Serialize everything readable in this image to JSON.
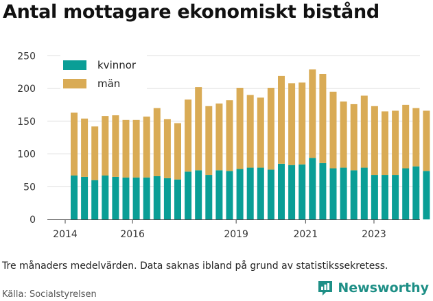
{
  "title": "Antal mottagare ekonomiskt bistånd",
  "note": "Tre månaders medelvärden. Data saknas ibland på grund av statistikssekretess.",
  "source": "Källa: Socialstyrelsen",
  "brand": {
    "name": "Newsworthy",
    "icon": "newsworthy-logo-icon"
  },
  "colors": {
    "kvinnor": "#0a9e96",
    "man": "#d9ab55",
    "grid": "#dddddd",
    "axis": "#444444"
  },
  "chart_data": {
    "type": "bar",
    "stacked": true,
    "x_ticks": [
      "2014",
      "2016",
      "2019",
      "2021",
      "2023"
    ],
    "x_tick_positions": [
      0,
      6.5,
      16.5,
      23.2,
      29.8
    ],
    "y_ticks": [
      0,
      50,
      100,
      150,
      200,
      250
    ],
    "ylim": [
      0,
      260
    ],
    "grid": true,
    "legend_position": "top-left",
    "categories": [
      "2014 Q1",
      "2014 Q2",
      "2014 Q3",
      "2014 Q4",
      "2015 Q1",
      "2015 Q2",
      "2015 Q3",
      "2015 Q4",
      "2016 Q1",
      "2016 Q2",
      "2016 Q3",
      "2016 Q4",
      "2017 Q1",
      "2017 Q2",
      "2017 Q3",
      "2017 Q4",
      "2018 Q1",
      "2018 Q2",
      "2018 Q3",
      "2018 Q4",
      "2019 Q1",
      "2019 Q2",
      "2019 Q3",
      "2019 Q4",
      "2020 Q1",
      "2020 Q2",
      "2020 Q3",
      "2020 Q4",
      "2021 Q1",
      "2021 Q2",
      "2021 Q3",
      "2021 Q4",
      "2022 Q1",
      "2022 Q2",
      "2022 Q3",
      "2022 Q4"
    ],
    "series": [
      {
        "name": "kvinnor",
        "values": [
          67,
          65,
          60,
          67,
          65,
          64,
          64,
          64,
          66,
          63,
          61,
          73,
          75,
          68,
          75,
          74,
          77,
          79,
          79,
          76,
          85,
          83,
          84,
          94,
          86,
          78,
          79,
          75,
          79,
          68,
          68,
          68,
          78,
          81,
          74,
          77
        ]
      },
      {
        "name": "män",
        "values": [
          96,
          89,
          82,
          91,
          94,
          88,
          88,
          93,
          104,
          90,
          86,
          110,
          127,
          105,
          102,
          108,
          124,
          111,
          107,
          125,
          134,
          125,
          125,
          135,
          136,
          117,
          101,
          101,
          110,
          105,
          97,
          98,
          97,
          89,
          92,
          99
        ]
      }
    ],
    "extra_bars": [
      {
        "kvinnor": 77,
        "man": 90
      },
      {
        "kvinnor": 77,
        "man": 95
      }
    ]
  }
}
